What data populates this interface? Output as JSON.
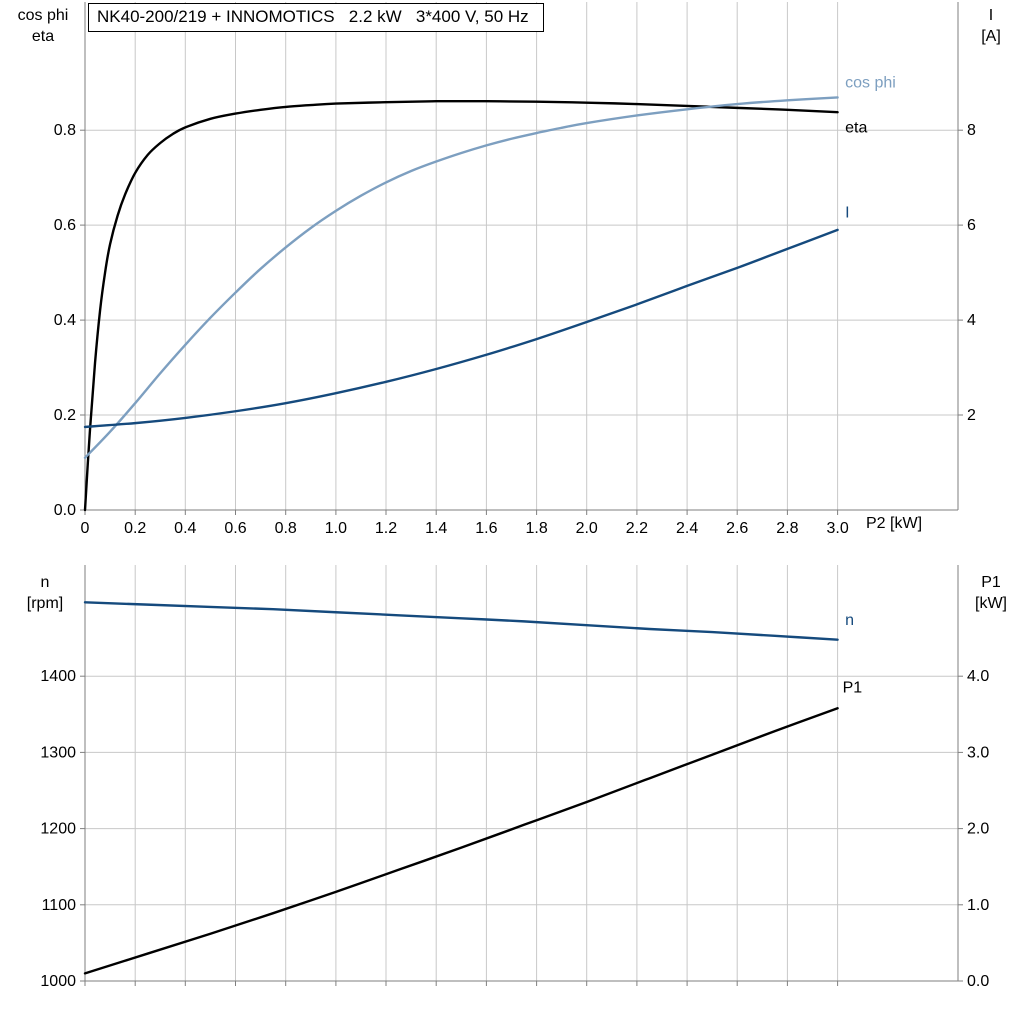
{
  "colors": {
    "eta": "#000000",
    "cos_phi": "#7d9fc0",
    "current": "#154a7d",
    "speed": "#154a7d",
    "p1": "#000000",
    "grid": "#c8c8c8",
    "axis": "#7f7f7f",
    "text": "#000000",
    "background": "#ffffff"
  },
  "chart_data": [
    {
      "type": "line",
      "name": "motor-performance-chart",
      "title": "NK40-200/219 + INNOMOTICS   2.2 kW   3*400 V, 50 Hz",
      "xlabel": "P2 [kW]",
      "ylabel_left_lines": [
        "cos phi",
        "eta"
      ],
      "ylabel_right_lines": [
        "I",
        "[A]"
      ],
      "xlim": [
        0,
        3.48
      ],
      "xticks": [
        0,
        0.2,
        0.4,
        0.6,
        0.8,
        1.0,
        1.2,
        1.4,
        1.6,
        1.8,
        2.0,
        2.2,
        2.4,
        2.6,
        2.8,
        3.0
      ],
      "xtick_labels": [
        "0",
        "0.2",
        "0.4",
        "0.6",
        "0.8",
        "1.0",
        "1.2",
        "1.4",
        "1.6",
        "1.8",
        "2.0",
        "2.2",
        "2.4",
        "2.6",
        "2.8",
        "3.0"
      ],
      "ylim_left": [
        0,
        1.07
      ],
      "yticks_left": [
        0,
        0.2,
        0.4,
        0.6,
        0.8
      ],
      "ytick_labels_left": [
        "0.0",
        "0.2",
        "0.4",
        "0.6",
        "0.8"
      ],
      "ylim_right": [
        0,
        10.7
      ],
      "yticks_right": [
        2,
        4,
        6,
        8
      ],
      "ytick_labels_right": [
        "2",
        "4",
        "6",
        "8"
      ],
      "grid": true,
      "legend_position": "inline-end-of-curve",
      "series": [
        {
          "name": "eta",
          "label": "eta",
          "axis": "left",
          "color": "#000000",
          "label_x": 3.03,
          "label_y": 0.806,
          "points": [
            [
              0,
              0
            ],
            [
              0.02,
              0.17
            ],
            [
              0.04,
              0.31
            ],
            [
              0.06,
              0.42
            ],
            [
              0.08,
              0.5
            ],
            [
              0.1,
              0.56
            ],
            [
              0.13,
              0.62
            ],
            [
              0.16,
              0.665
            ],
            [
              0.2,
              0.71
            ],
            [
              0.25,
              0.748
            ],
            [
              0.3,
              0.773
            ],
            [
              0.35,
              0.792
            ],
            [
              0.4,
              0.806
            ],
            [
              0.5,
              0.824
            ],
            [
              0.6,
              0.835
            ],
            [
              0.7,
              0.843
            ],
            [
              0.8,
              0.849
            ],
            [
              0.9,
              0.853
            ],
            [
              1.0,
              0.856
            ],
            [
              1.2,
              0.859
            ],
            [
              1.4,
              0.861
            ],
            [
              1.6,
              0.861
            ],
            [
              1.8,
              0.86
            ],
            [
              2.0,
              0.858
            ],
            [
              2.2,
              0.855
            ],
            [
              2.4,
              0.851
            ],
            [
              2.6,
              0.847
            ],
            [
              2.8,
              0.843
            ],
            [
              3.0,
              0.838
            ]
          ]
        },
        {
          "name": "cos phi",
          "label": "cos phi",
          "axis": "left",
          "color": "#7d9fc0",
          "label_x": 3.03,
          "label_y": 0.9,
          "points": [
            [
              0,
              0.11
            ],
            [
              0.1,
              0.165
            ],
            [
              0.2,
              0.225
            ],
            [
              0.3,
              0.288
            ],
            [
              0.4,
              0.348
            ],
            [
              0.5,
              0.405
            ],
            [
              0.6,
              0.458
            ],
            [
              0.7,
              0.508
            ],
            [
              0.8,
              0.553
            ],
            [
              0.9,
              0.594
            ],
            [
              1.0,
              0.63
            ],
            [
              1.1,
              0.662
            ],
            [
              1.2,
              0.69
            ],
            [
              1.3,
              0.714
            ],
            [
              1.4,
              0.734
            ],
            [
              1.5,
              0.752
            ],
            [
              1.6,
              0.768
            ],
            [
              1.7,
              0.782
            ],
            [
              1.8,
              0.794
            ],
            [
              1.9,
              0.805
            ],
            [
              2.0,
              0.815
            ],
            [
              2.2,
              0.831
            ],
            [
              2.4,
              0.844
            ],
            [
              2.6,
              0.855
            ],
            [
              2.8,
              0.863
            ],
            [
              3.0,
              0.869
            ]
          ]
        },
        {
          "name": "I",
          "label": "I",
          "axis": "right",
          "color": "#154a7d",
          "label_x": 3.03,
          "label_y": 6.27,
          "points": [
            [
              0,
              1.75
            ],
            [
              0.2,
              1.83
            ],
            [
              0.4,
              1.94
            ],
            [
              0.6,
              2.08
            ],
            [
              0.8,
              2.25
            ],
            [
              1.0,
              2.46
            ],
            [
              1.2,
              2.7
            ],
            [
              1.4,
              2.97
            ],
            [
              1.6,
              3.27
            ],
            [
              1.8,
              3.6
            ],
            [
              2.0,
              3.96
            ],
            [
              2.2,
              4.33
            ],
            [
              2.4,
              4.72
            ],
            [
              2.6,
              5.1
            ],
            [
              2.8,
              5.5
            ],
            [
              3.0,
              5.9
            ]
          ]
        }
      ]
    },
    {
      "type": "line",
      "name": "speed-power-chart",
      "title": "",
      "xlabel": "",
      "ylabel_left_lines": [
        "n",
        "[rpm]"
      ],
      "ylabel_right_lines": [
        "P1",
        "[kW]"
      ],
      "xlim": [
        0,
        3.48
      ],
      "xticks": [
        0,
        0.2,
        0.4,
        0.6,
        0.8,
        1.0,
        1.2,
        1.4,
        1.6,
        1.8,
        2.0,
        2.2,
        2.4,
        2.6,
        2.8,
        3.0
      ],
      "xtick_labels": null,
      "ylim_left": [
        1000,
        1546
      ],
      "yticks_left": [
        1000,
        1100,
        1200,
        1300,
        1400
      ],
      "ytick_labels_left": [
        "1000",
        "1100",
        "1200",
        "1300",
        "1400"
      ],
      "ylim_right": [
        0,
        5.46
      ],
      "yticks_right": [
        0,
        1,
        2,
        3,
        4
      ],
      "ytick_labels_right": [
        "0.0",
        "1.0",
        "2.0",
        "3.0",
        "4.0"
      ],
      "grid": true,
      "legend_position": "inline-end-of-curve",
      "series": [
        {
          "name": "n",
          "label": "n",
          "axis": "left",
          "color": "#154a7d",
          "label_x": 3.03,
          "label_y": 1474,
          "points": [
            [
              0,
              1497
            ],
            [
              0.25,
              1494
            ],
            [
              0.5,
              1491
            ],
            [
              0.75,
              1488
            ],
            [
              1.0,
              1484
            ],
            [
              1.25,
              1480
            ],
            [
              1.5,
              1476
            ],
            [
              1.75,
              1472
            ],
            [
              2.0,
              1467
            ],
            [
              2.25,
              1462
            ],
            [
              2.5,
              1458
            ],
            [
              2.75,
              1453
            ],
            [
              3.0,
              1448
            ]
          ]
        },
        {
          "name": "P1",
          "label": "P1",
          "axis": "right",
          "color": "#000000",
          "label_x": 3.02,
          "label_y": 3.85,
          "points": [
            [
              0,
              0.1
            ],
            [
              0.25,
              0.36
            ],
            [
              0.5,
              0.62
            ],
            [
              0.75,
              0.89
            ],
            [
              1.0,
              1.17
            ],
            [
              1.25,
              1.46
            ],
            [
              1.5,
              1.75
            ],
            [
              1.75,
              2.05
            ],
            [
              2.0,
              2.35
            ],
            [
              2.25,
              2.66
            ],
            [
              2.5,
              2.97
            ],
            [
              2.75,
              3.28
            ],
            [
              3.0,
              3.58
            ]
          ]
        }
      ]
    }
  ]
}
